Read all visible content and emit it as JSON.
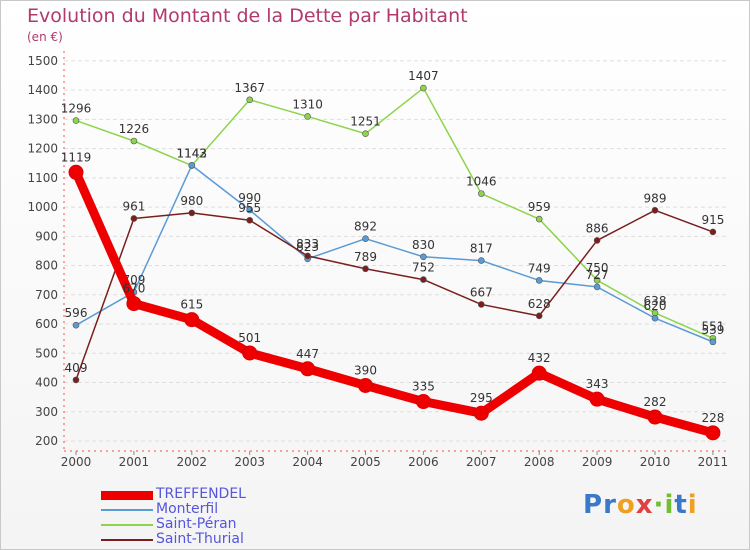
{
  "title": "Evolution du Montant de la Dette par Habitant",
  "subtitle": "(en €)",
  "logo": {
    "text": "Prox·iti",
    "letters": [
      {
        "char": "P",
        "color": "#3a78c9"
      },
      {
        "char": "r",
        "color": "#3a78c9"
      },
      {
        "char": "o",
        "color": "#f0a020"
      },
      {
        "char": "x",
        "color": "#e04040"
      },
      {
        "char": "·",
        "color": "#6fbf2f"
      },
      {
        "char": "i",
        "color": "#6fbf2f"
      },
      {
        "char": "t",
        "color": "#3a78c9"
      },
      {
        "char": "i",
        "color": "#f0a020"
      }
    ]
  },
  "chart_data": {
    "type": "line",
    "title": "Evolution du Montant de la Dette par Habitant",
    "subtitle": "(en €)",
    "xlabel": "",
    "ylabel": "",
    "ylim": [
      200,
      1500
    ],
    "yticks": [
      200,
      300,
      400,
      500,
      600,
      700,
      800,
      900,
      1000,
      1100,
      1200,
      1300,
      1400,
      1500
    ],
    "x": [
      "2000",
      "2001",
      "2002",
      "2003",
      "2004",
      "2005",
      "2006",
      "2007",
      "2008",
      "2009",
      "2010",
      "2011"
    ],
    "grid": "horizontal",
    "legend_position": "bottom-left",
    "series": [
      {
        "name": "Saint-Péran",
        "color": "#8cd44a",
        "values": [
          1296,
          1226,
          1142,
          1367,
          1310,
          1251,
          1407,
          1046,
          959,
          750,
          638,
          551
        ]
      },
      {
        "name": "Monterfil",
        "color": "#5b9bd5",
        "values": [
          596,
          709,
          1143,
          990,
          823,
          892,
          830,
          817,
          749,
          727,
          620,
          539
        ]
      },
      {
        "name": "Saint-Thurial",
        "color": "#7a1e1e",
        "values": [
          409,
          961,
          980,
          955,
          833,
          789,
          752,
          667,
          628,
          886,
          989,
          915
        ]
      },
      {
        "name": "TREFFENDEL",
        "color": "#ee0000",
        "values": [
          1119,
          670,
          615,
          501,
          447,
          390,
          335,
          295,
          432,
          343,
          282,
          228
        ]
      }
    ],
    "legend": [
      "TREFFENDEL",
      "Monterfil",
      "Saint-Péran",
      "Saint-Thurial"
    ]
  }
}
